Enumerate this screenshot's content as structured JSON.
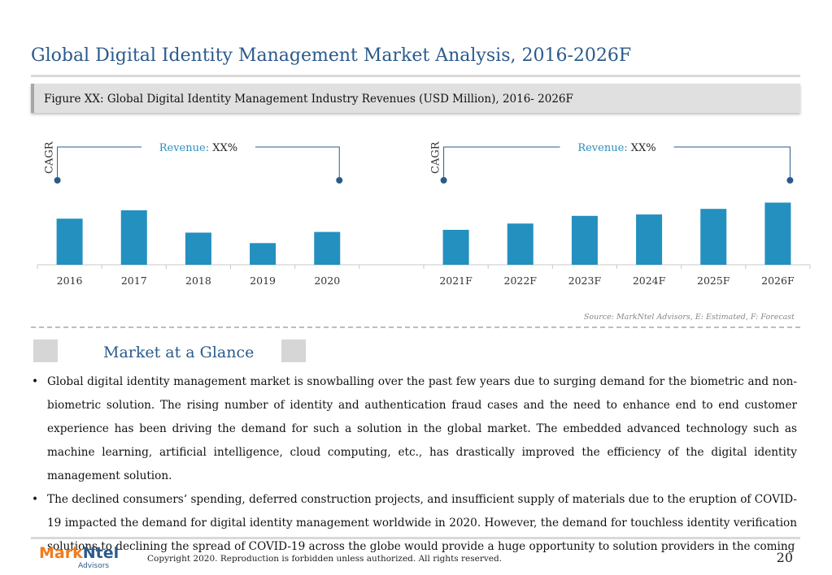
{
  "page": {
    "title": "Global Digital Identity Management Market Analysis, 2016-2026F",
    "figure_caption": "Figure XX: Global Digital Identity Management Industry Revenues (USD Million), 2016- 2026F",
    "source": "Source: MarkNtel Advisors, E: Estimated, F: Forecast",
    "section_title": "Market at a Glance",
    "bullets": [
      "Global digital identity management market is snowballing over the past few years due to surging demand for the biometric and non-biometric solution. The rising number of identity and authentication fraud cases and the need to enhance end to end customer experience has been driving the demand for such a solution in the global market. The embedded advanced technology such as machine learning, artificial intelligence, cloud computing, etc., has drastically improved the efficiency of the digital identity management solution.",
      "The declined consumers‘ spending, deferred construction projects, and insufficient supply of materials due to the eruption of COVID-19 impacted the demand for digital identity management worldwide in 2020. However, the demand for touchless identity verification solutions to declining the spread of COVID-19 across the globe would provide a huge opportunity to solution providers in the coming"
    ],
    "bullet_symbol": "•",
    "logo": {
      "mark": "Mark",
      "ntel": "Ntel",
      "sub": "Advisors"
    },
    "copyright": "Copyright 2020. Reproduction is forbidden unless authorized. All rights reserved.",
    "page_number": "20"
  },
  "chart_data": {
    "type": "bar",
    "bar_color": "#2390bf",
    "categories": [
      "2016",
      "2017",
      "2018",
      "2019",
      "2020",
      "",
      "2021F",
      "2022F",
      "2023F",
      "2024F",
      "2025F",
      "2026F"
    ],
    "values": [
      66,
      78,
      46,
      31,
      47,
      null,
      50,
      59,
      70,
      72,
      80,
      89
    ],
    "ylim": [
      0,
      100
    ],
    "grid": false,
    "annotations": [
      {
        "side": "CAGR",
        "label": "Revenue:",
        "value": "XX%",
        "from": "2016",
        "to": "2020"
      },
      {
        "side": "CAGR",
        "label": "Revenue:",
        "value": "XX%",
        "from": "2021F",
        "to": "2026F"
      }
    ]
  }
}
